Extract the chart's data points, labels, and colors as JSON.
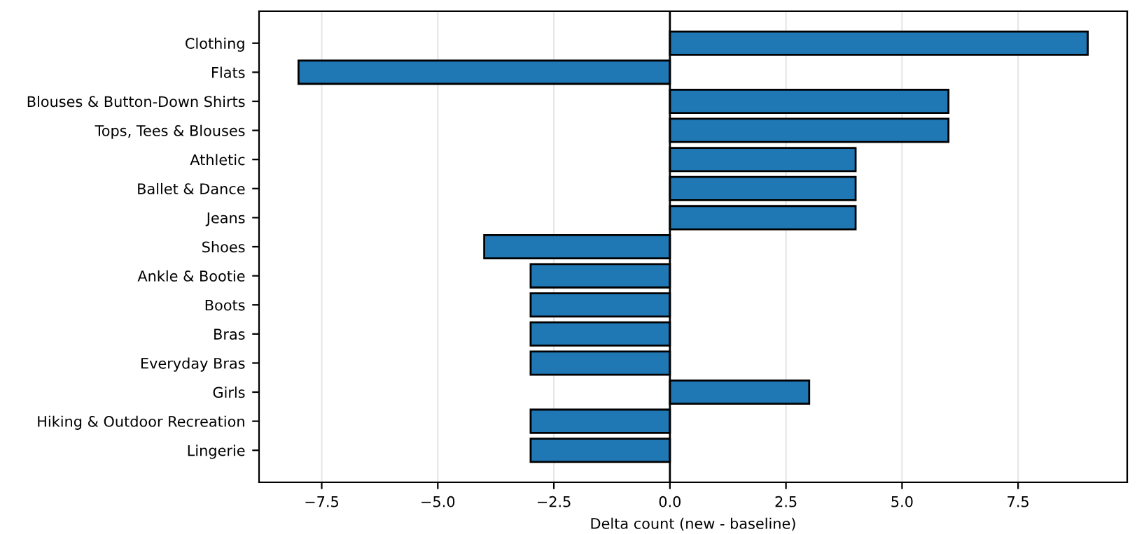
{
  "chart_data": {
    "type": "bar",
    "orientation": "horizontal",
    "xlabel": "Delta count (new - baseline)",
    "categories": [
      "Clothing",
      "Flats",
      "Blouses & Button-Down Shirts",
      "Tops, Tees & Blouses",
      "Athletic",
      "Ballet & Dance",
      "Jeans",
      "Shoes",
      "Ankle & Bootie",
      "Boots",
      "Bras",
      "Everyday Bras",
      "Girls",
      "Hiking & Outdoor Recreation",
      "Lingerie"
    ],
    "values": [
      9,
      -8,
      6,
      6,
      4,
      4,
      4,
      -4,
      -3,
      -3,
      -3,
      -3,
      3,
      -3,
      -3
    ],
    "color": "#1f77b4",
    "xlim": [
      -8.85,
      9.85
    ],
    "xticks": [
      {
        "value": -7.5,
        "label": "−7.5"
      },
      {
        "value": -5,
        "label": "−5.0"
      },
      {
        "value": -2.5,
        "label": "−2.5"
      },
      {
        "value": 0,
        "label": "0.0"
      },
      {
        "value": 2.5,
        "label": "2.5"
      },
      {
        "value": 5,
        "label": "5.0"
      },
      {
        "value": 7.5,
        "label": "7.5"
      }
    ],
    "ref_lines": [
      {
        "axis": "x",
        "value": 0,
        "color": "#000000"
      }
    ],
    "grid": "x",
    "legend": false
  }
}
